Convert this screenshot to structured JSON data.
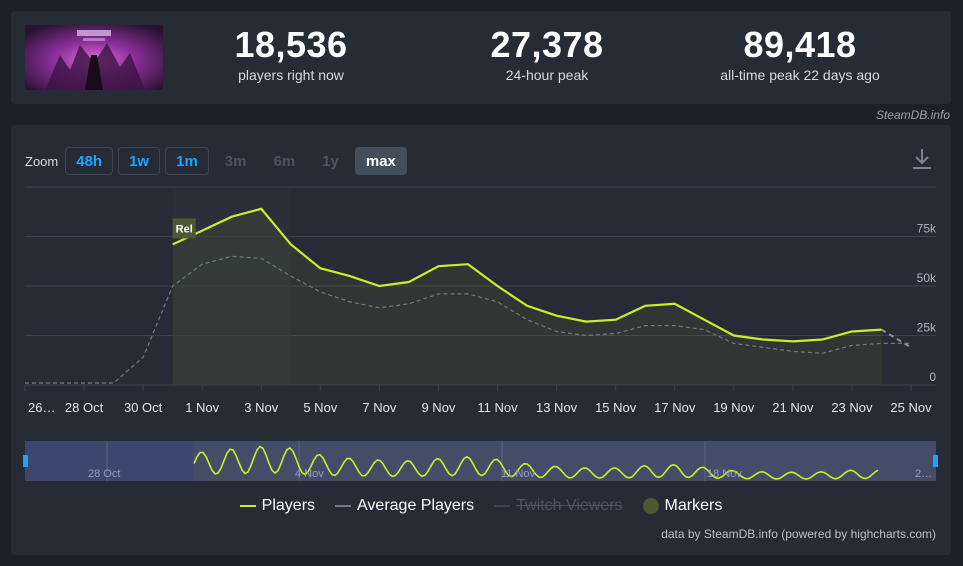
{
  "stats": {
    "current": {
      "value": "18,536",
      "label": "players right now"
    },
    "peak24": {
      "value": "27,378",
      "label": "24-hour peak"
    },
    "alltime": {
      "value": "89,418",
      "label": "all-time peak 22 days ago"
    }
  },
  "credit": "SteamDB.info",
  "zoom": {
    "label": "Zoom",
    "options": [
      {
        "label": "48h",
        "state": "on"
      },
      {
        "label": "1w",
        "state": "on"
      },
      {
        "label": "1m",
        "state": "on"
      },
      {
        "label": "3m",
        "state": "off"
      },
      {
        "label": "6m",
        "state": "off"
      },
      {
        "label": "1y",
        "state": "off"
      },
      {
        "label": "max",
        "state": "active"
      }
    ]
  },
  "chart_data": {
    "type": "line",
    "x_labels": [
      "26…",
      "28 Oct",
      "30 Oct",
      "1 Nov",
      "3 Nov",
      "5 Nov",
      "7 Nov",
      "9 Nov",
      "11 Nov",
      "13 Nov",
      "15 Nov",
      "17 Nov",
      "19 Nov",
      "21 Nov",
      "23 Nov",
      "25 Nov"
    ],
    "y_ticks": [
      "0",
      "25k",
      "50k",
      "75k"
    ],
    "ylim": [
      0,
      100000
    ],
    "marker_label": "Rel",
    "series": [
      {
        "name": "Players",
        "color": "#c8f02a",
        "points": [
          [
            5,
            71000
          ],
          [
            6,
            78000
          ],
          [
            7,
            85000
          ],
          [
            8,
            89000
          ],
          [
            9,
            71000
          ],
          [
            10,
            59000
          ],
          [
            11,
            55000
          ],
          [
            12,
            50000
          ],
          [
            13,
            52000
          ],
          [
            14,
            60000
          ],
          [
            15,
            61000
          ],
          [
            16,
            50000
          ],
          [
            17,
            40000
          ],
          [
            18,
            35000
          ],
          [
            19,
            32000
          ],
          [
            20,
            33000
          ],
          [
            21,
            40000
          ],
          [
            22,
            41000
          ],
          [
            23,
            33000
          ],
          [
            24,
            25000
          ],
          [
            25,
            23000
          ],
          [
            26,
            22000
          ],
          [
            27,
            23000
          ],
          [
            28,
            27000
          ],
          [
            29,
            28000
          ]
        ]
      },
      {
        "name": "Average Players",
        "color": "#707b86",
        "points": [
          [
            0,
            1000
          ],
          [
            1,
            1000
          ],
          [
            2,
            1000
          ],
          [
            3,
            1000
          ],
          [
            4,
            14000
          ],
          [
            5,
            50000
          ],
          [
            6,
            61000
          ],
          [
            7,
            65000
          ],
          [
            8,
            64000
          ],
          [
            9,
            55000
          ],
          [
            10,
            47000
          ],
          [
            11,
            42000
          ],
          [
            12,
            39000
          ],
          [
            13,
            41000
          ],
          [
            14,
            46000
          ],
          [
            15,
            46000
          ],
          [
            16,
            42000
          ],
          [
            17,
            33000
          ],
          [
            18,
            27000
          ],
          [
            19,
            25000
          ],
          [
            20,
            26000
          ],
          [
            21,
            30000
          ],
          [
            22,
            30000
          ],
          [
            23,
            28000
          ],
          [
            24,
            21000
          ],
          [
            25,
            19000
          ],
          [
            26,
            17000
          ],
          [
            27,
            16000
          ],
          [
            28,
            20000
          ],
          [
            29,
            21000
          ],
          [
            30,
            21000
          ]
        ]
      }
    ],
    "navigator_labels": [
      "28 Oct",
      "4 Nov",
      "11 Nov",
      "18 Nov",
      "2…"
    ]
  },
  "legend": {
    "players": "Players",
    "average": "Average Players",
    "twitch": "Twitch Viewers",
    "markers": "Markers"
  },
  "footer": "data by SteamDB.info (powered by highcharts.com)"
}
